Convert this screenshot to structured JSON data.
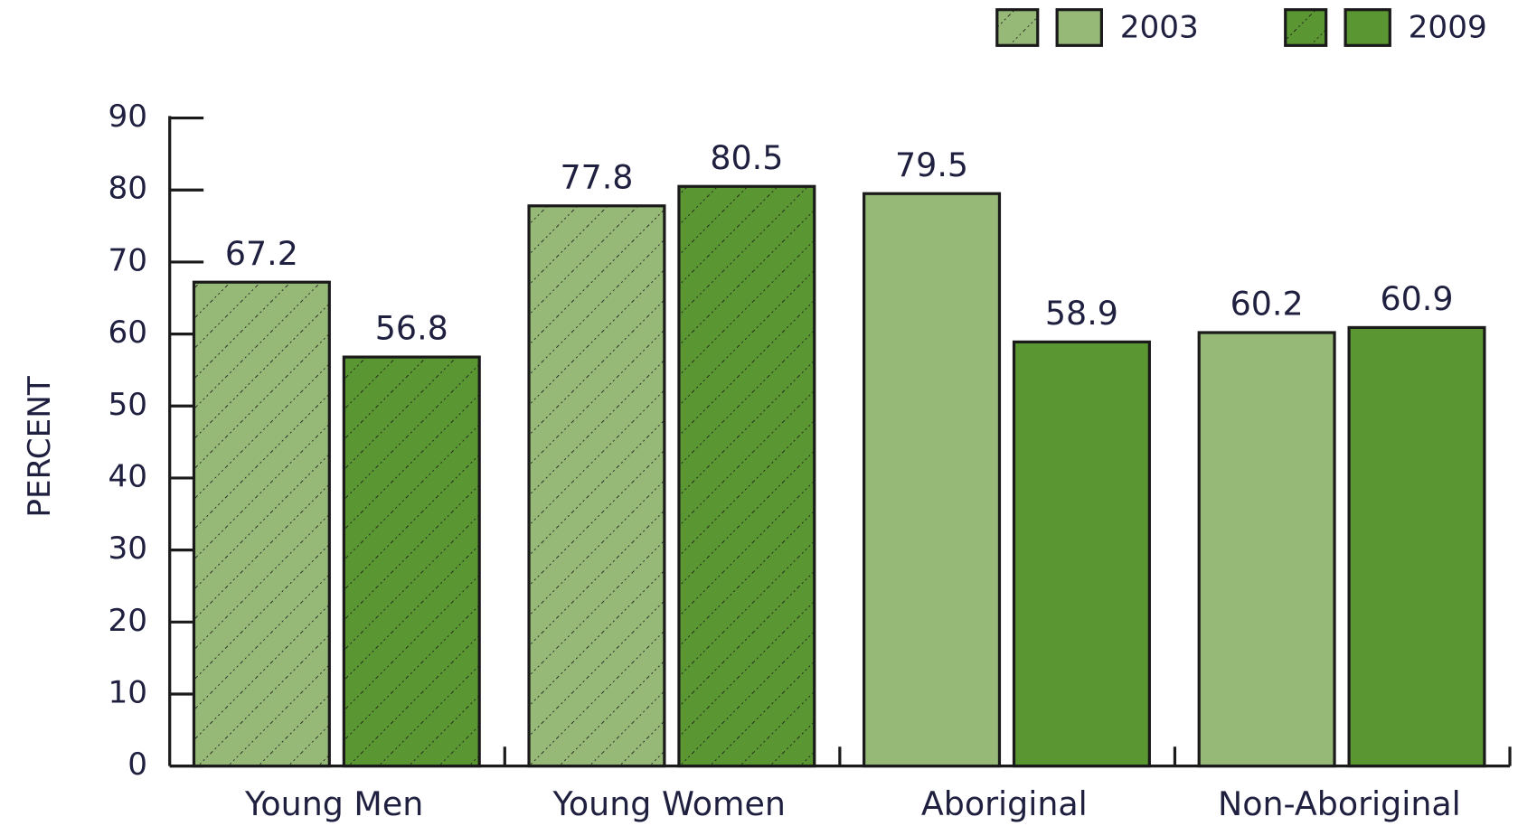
{
  "chart_data": {
    "type": "bar",
    "y_label": "PERCENT",
    "categories": [
      "Young Men",
      "Young Women",
      "Aboriginal",
      "Non-Aboriginal"
    ],
    "hatched": [
      true,
      true,
      false,
      false
    ],
    "series": [
      {
        "name": "2003",
        "color": "#97b978",
        "values": [
          67.2,
          77.8,
          79.5,
          60.2
        ]
      },
      {
        "name": "2009",
        "color": "#5a9632",
        "values": [
          56.8,
          80.5,
          58.9,
          60.9
        ]
      }
    ],
    "ylim": [
      0,
      90
    ],
    "yticks": [
      0,
      10,
      20,
      30,
      40,
      50,
      60,
      70,
      80,
      90
    ],
    "legend": "top-right"
  }
}
